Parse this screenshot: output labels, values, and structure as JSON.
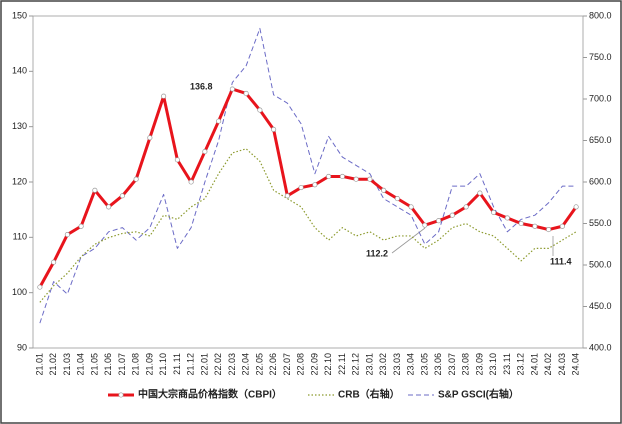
{
  "chart_data": {
    "type": "line",
    "categories": [
      "21.01",
      "21.02",
      "21.03",
      "21.04",
      "21.05",
      "21.06",
      "21.07",
      "21.08",
      "21.09",
      "21.10",
      "21.11",
      "21.12",
      "22.01",
      "22.02",
      "22.03",
      "22.04",
      "22.05",
      "22.06",
      "22.07",
      "22.08",
      "22.09",
      "22.10",
      "22.11",
      "22.12",
      "23.01",
      "23.02",
      "23.03",
      "23.04",
      "23.05",
      "23.06",
      "23.07",
      "23.08",
      "23.09",
      "23.10",
      "23.11",
      "23.12",
      "24.01",
      "24.02",
      "24.03",
      "24.04"
    ],
    "series": [
      {
        "name": "中国大宗商品价格指数（CBPI）",
        "color": "#e8141c",
        "values": [
          101,
          105.5,
          110.5,
          112,
          118.5,
          115.5,
          117.5,
          120.5,
          128,
          135.5,
          124,
          120,
          125.5,
          131,
          136.8,
          136,
          133,
          129.5,
          117.5,
          119,
          119.5,
          121,
          121,
          120.5,
          120.5,
          118.5,
          117,
          115.5,
          112.2,
          113,
          114,
          115.5,
          118,
          114.5,
          113.5,
          112.5,
          112,
          111.4,
          112,
          115.5
        ]
      },
      {
        "name": "CRB（右轴）",
        "color": "#8c9a2e",
        "axis": "y2",
        "values": [
          455,
          475,
          490,
          510,
          525,
          533,
          538,
          540,
          535,
          560,
          555,
          570,
          580,
          610,
          635,
          640,
          625,
          590,
          580,
          570,
          545,
          530,
          545,
          535,
          540,
          530,
          535,
          535,
          520,
          530,
          545,
          550,
          540,
          535,
          520,
          505,
          520,
          520,
          530,
          540
        ]
      },
      {
        "name": "S&P GSCI(右轴）",
        "color": "#6b6bc6",
        "axis": "y2",
        "values": [
          430,
          480,
          465,
          510,
          520,
          540,
          545,
          530,
          545,
          585,
          520,
          545,
          600,
          650,
          720,
          740,
          785,
          705,
          695,
          670,
          610,
          655,
          630,
          620,
          610,
          580,
          570,
          560,
          525,
          540,
          595,
          595,
          610,
          570,
          540,
          555,
          560,
          575,
          595,
          595
        ]
      }
    ],
    "annotations": [
      "136.8",
      "112.2",
      "111.4"
    ],
    "ylim": [
      90,
      150
    ],
    "yticks": [
      90,
      100,
      110,
      120,
      130,
      140,
      150
    ],
    "y2lim": [
      400,
      800
    ],
    "y2ticks": [
      {
        "value": 400,
        "label": "400.0"
      },
      {
        "value": 450,
        "label": "450.0"
      },
      {
        "value": 500,
        "label": "500.0"
      },
      {
        "value": 550,
        "label": "550.0"
      },
      {
        "value": 600,
        "label": "600.0"
      },
      {
        "value": 650,
        "label": "650.0"
      },
      {
        "value": 700,
        "label": "700.0"
      },
      {
        "value": 750,
        "label": "750.0"
      },
      {
        "value": 800,
        "label": "800.0"
      }
    ],
    "legend": "bottom"
  }
}
